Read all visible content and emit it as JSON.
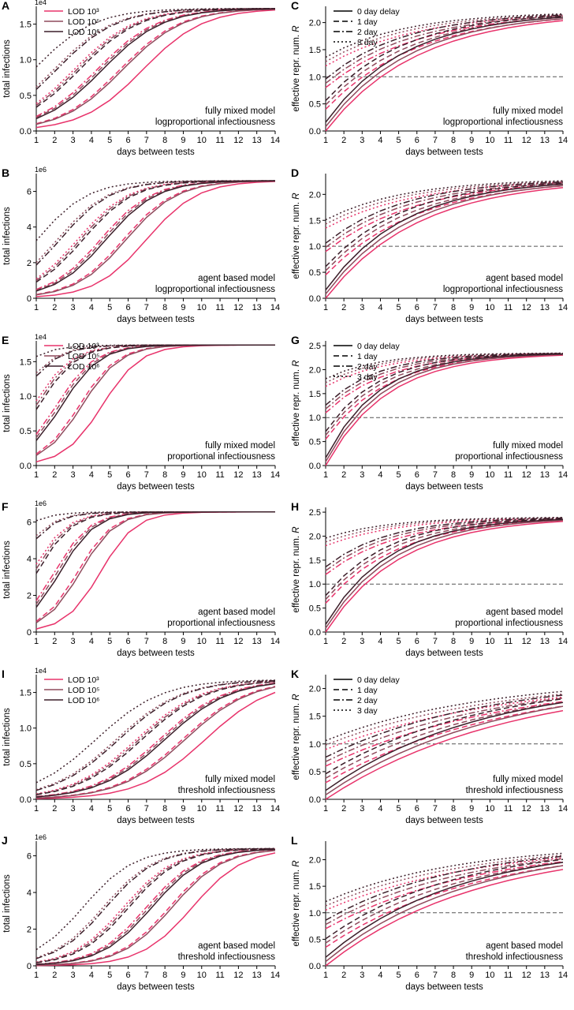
{
  "figure": {
    "legend_lod": {
      "entries": [
        "LOD 10³",
        "LOD 10⁵",
        "LOD 10⁶"
      ]
    },
    "legend_delay": {
      "entries": [
        "0 day delay",
        "1 day",
        "2 day",
        "3 day"
      ]
    },
    "colors": {
      "lod3": "#e8336b",
      "lod5": "#8f4a5c",
      "lod6": "#3c1f2a"
    },
    "tests_axis_label": "days between tests"
  },
  "chart_data": [
    {
      "panel": "A",
      "type": "line",
      "ylabel": "total infections",
      "xlabel": "days between tests",
      "offset_text": "1e4",
      "x": [
        1,
        2,
        3,
        4,
        5,
        6,
        7,
        8,
        9,
        10,
        11,
        12,
        13,
        14
      ],
      "xlim": [
        1,
        14
      ],
      "ylim": [
        0,
        1.75
      ],
      "yticks": [
        "0.0",
        "0.5",
        "1.0",
        "1.5"
      ],
      "annotation": [
        "fully mixed model",
        "logproportional infectiousness"
      ],
      "legend": "lod",
      "kind": "infections",
      "params": {
        "rate": 0.38,
        "plateau": 1.72,
        "mid0": 6.8
      }
    },
    {
      "panel": "C",
      "type": "line",
      "ylabel": "effective repr. num. R",
      "xlabel": "days between tests",
      "x": [
        1,
        2,
        3,
        4,
        5,
        6,
        7,
        8,
        9,
        10,
        11,
        12,
        13,
        14
      ],
      "xlim": [
        1,
        14
      ],
      "ylim": [
        0,
        2.3
      ],
      "yticks": [
        "0.0",
        "0.5",
        "1.0",
        "1.5",
        "2.0"
      ],
      "annotation": [
        "fully mixed model",
        "logproportional infectiousness"
      ],
      "legend": "delay",
      "reference_line": 1.0,
      "kind": "R",
      "params": {
        "top": 2.2,
        "rate": 0.2,
        "start0": 0.0,
        "step": 0.4
      }
    },
    {
      "panel": "B",
      "type": "line",
      "ylabel": "total infections",
      "xlabel": "days between tests",
      "offset_text": "1e6",
      "x": [
        1,
        2,
        3,
        4,
        5,
        6,
        7,
        8,
        9,
        10,
        11,
        12,
        13,
        14
      ],
      "xlim": [
        1,
        14
      ],
      "ylim": [
        0,
        7
      ],
      "yticks": [
        "0",
        "2",
        "4",
        "6"
      ],
      "annotation": [
        "agent based model",
        "logproportional infectiousness"
      ],
      "legend": "none",
      "kind": "infections",
      "params": {
        "rate": 0.45,
        "plateau": 6.6,
        "mid0": 7.0
      }
    },
    {
      "panel": "D",
      "type": "line",
      "ylabel": "effective repr. num. R",
      "xlabel": "days between tests",
      "x": [
        1,
        2,
        3,
        4,
        5,
        6,
        7,
        8,
        9,
        10,
        11,
        12,
        13,
        14
      ],
      "xlim": [
        1,
        14
      ],
      "ylim": [
        0,
        2.4
      ],
      "yticks": [
        "0.0",
        "0.5",
        "1.0",
        "1.5",
        "2.0"
      ],
      "annotation": [
        "agent based model",
        "logproportional infectiousness"
      ],
      "legend": "none",
      "reference_line": 1.0,
      "kind": "R",
      "params": {
        "top": 2.3,
        "rate": 0.2,
        "start0": 0.0,
        "step": 0.45
      }
    },
    {
      "panel": "E",
      "type": "line",
      "ylabel": "total infections",
      "xlabel": "days between tests",
      "offset_text": "1e4",
      "x": [
        1,
        2,
        3,
        4,
        5,
        6,
        7,
        8,
        9,
        10,
        11,
        12,
        13,
        14
      ],
      "xlim": [
        1,
        14
      ],
      "ylim": [
        0,
        1.8
      ],
      "yticks": [
        "0.0",
        "0.5",
        "1.0",
        "1.5"
      ],
      "annotation": [
        "fully mixed model",
        "proportional infectiousness"
      ],
      "legend": "lod",
      "kind": "infections",
      "params": {
        "rate": 0.6,
        "plateau": 1.74,
        "mid0": 4.6
      }
    },
    {
      "panel": "G",
      "type": "line",
      "ylabel": "effective repr. num. R",
      "xlabel": "days between tests",
      "x": [
        1,
        2,
        3,
        4,
        5,
        6,
        7,
        8,
        9,
        10,
        11,
        12,
        13,
        14
      ],
      "xlim": [
        1,
        14
      ],
      "ylim": [
        0,
        2.6
      ],
      "yticks": [
        "0.0",
        "0.5",
        "1.0",
        "1.5",
        "2.0",
        "2.5"
      ],
      "annotation": [
        "fully mixed model",
        "proportional infectiousness"
      ],
      "legend": "delay",
      "reference_line": 1.0,
      "kind": "R",
      "params": {
        "top": 2.35,
        "rate": 0.3,
        "start0": 0.0,
        "step": 0.55
      }
    },
    {
      "panel": "F",
      "type": "line",
      "ylabel": "total infections",
      "xlabel": "days between tests",
      "offset_text": "1e6",
      "x": [
        1,
        2,
        3,
        4,
        5,
        6,
        7,
        8,
        9,
        10,
        11,
        12,
        13,
        14
      ],
      "xlim": [
        1,
        14
      ],
      "ylim": [
        0,
        6.8
      ],
      "yticks": [
        "0",
        "2",
        "4",
        "6"
      ],
      "annotation": [
        "agent based model",
        "proportional infectiousness"
      ],
      "legend": "none",
      "kind": "infections",
      "params": {
        "rate": 0.65,
        "plateau": 6.55,
        "mid0": 4.5
      }
    },
    {
      "panel": "H",
      "type": "line",
      "ylabel": "effective repr. num. R",
      "xlabel": "days between tests",
      "x": [
        1,
        2,
        3,
        4,
        5,
        6,
        7,
        8,
        9,
        10,
        11,
        12,
        13,
        14
      ],
      "xlim": [
        1,
        14
      ],
      "ylim": [
        0,
        2.6
      ],
      "yticks": [
        "0.0",
        "0.5",
        "1.0",
        "1.5",
        "2.0",
        "2.5"
      ],
      "annotation": [
        "agent based model",
        "proportional infectiousness"
      ],
      "legend": "none",
      "reference_line": 1.0,
      "kind": "R",
      "params": {
        "top": 2.4,
        "rate": 0.25,
        "start0": 0.0,
        "step": 0.6
      }
    },
    {
      "panel": "I",
      "type": "line",
      "ylabel": "total infections",
      "xlabel": "days between tests",
      "offset_text": "1e4",
      "x": [
        1,
        2,
        3,
        4,
        5,
        6,
        7,
        8,
        9,
        10,
        11,
        12,
        13,
        14
      ],
      "xlim": [
        1,
        14
      ],
      "ylim": [
        0,
        1.75
      ],
      "yticks": [
        "0.0",
        "0.5",
        "1.0",
        "1.5"
      ],
      "annotation": [
        "fully mixed model",
        "threshold infectiousness"
      ],
      "legend": "lod",
      "kind": "infections",
      "params": {
        "rate": 0.35,
        "plateau": 1.68,
        "mid0": 10.2
      }
    },
    {
      "panel": "K",
      "type": "line",
      "ylabel": "effective repr. num. R",
      "xlabel": "days between tests",
      "x": [
        1,
        2,
        3,
        4,
        5,
        6,
        7,
        8,
        9,
        10,
        11,
        12,
        13,
        14
      ],
      "xlim": [
        1,
        14
      ],
      "ylim": [
        0,
        2.25
      ],
      "yticks": [
        "0.0",
        "0.5",
        "1.0",
        "1.5",
        "2.0"
      ],
      "annotation": [
        "fully mixed model",
        "threshold infectiousness"
      ],
      "legend": "delay",
      "reference_line": 1.0,
      "kind": "R",
      "params": {
        "top": 2.2,
        "rate": 0.1,
        "start0": 0.0,
        "step": 0.3
      }
    },
    {
      "panel": "J",
      "type": "line",
      "ylabel": "total infections",
      "xlabel": "days between tests",
      "offset_text": "1e6",
      "x": [
        1,
        2,
        3,
        4,
        5,
        6,
        7,
        8,
        9,
        10,
        11,
        12,
        13,
        14
      ],
      "xlim": [
        1,
        14
      ],
      "ylim": [
        0,
        6.8
      ],
      "yticks": [
        "0",
        "2",
        "4",
        "6"
      ],
      "annotation": [
        "agent based model",
        "threshold infectiousness"
      ],
      "legend": "none",
      "kind": "infections",
      "params": {
        "rate": 0.45,
        "plateau": 6.4,
        "mid0": 9.5
      }
    },
    {
      "panel": "L",
      "type": "line",
      "ylabel": "effective repr. num. R",
      "xlabel": "days between tests",
      "x": [
        1,
        2,
        3,
        4,
        5,
        6,
        7,
        8,
        9,
        10,
        11,
        12,
        13,
        14
      ],
      "xlim": [
        1,
        14
      ],
      "ylim": [
        0,
        2.35
      ],
      "yticks": [
        "0.0",
        "0.5",
        "1.0",
        "1.5",
        "2.0"
      ],
      "annotation": [
        "agent based model",
        "threshold infectiousness"
      ],
      "legend": "none",
      "reference_line": 1.0,
      "kind": "R",
      "params": {
        "top": 2.3,
        "rate": 0.12,
        "start0": 0.0,
        "step": 0.35
      }
    }
  ]
}
